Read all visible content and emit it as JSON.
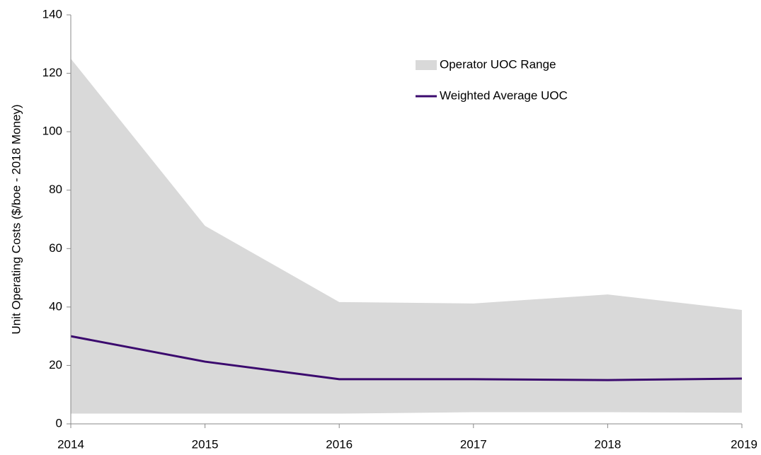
{
  "chart_data": {
    "type": "line",
    "y_label": "Unit Operating Costs ($/boe - 2018 Money)",
    "categories": [
      "2014",
      "2015",
      "2016",
      "2017",
      "2018",
      "2019"
    ],
    "series": [
      {
        "name": "Operator UOC Range",
        "color": "#d9d9d9",
        "low": [
          3.5,
          3.5,
          3.5,
          4,
          4,
          3.8
        ],
        "high": [
          125,
          67.8,
          41.7,
          41.2,
          44.3,
          39
        ]
      },
      {
        "name": "Weighted Average UOC",
        "color": "#3b0a6e",
        "values": [
          30,
          21.3,
          15.3,
          15.3,
          15,
          15.5
        ]
      }
    ],
    "ylim": [
      0,
      140
    ],
    "yticks": [
      0,
      20,
      40,
      60,
      80,
      100,
      120,
      140
    ]
  }
}
